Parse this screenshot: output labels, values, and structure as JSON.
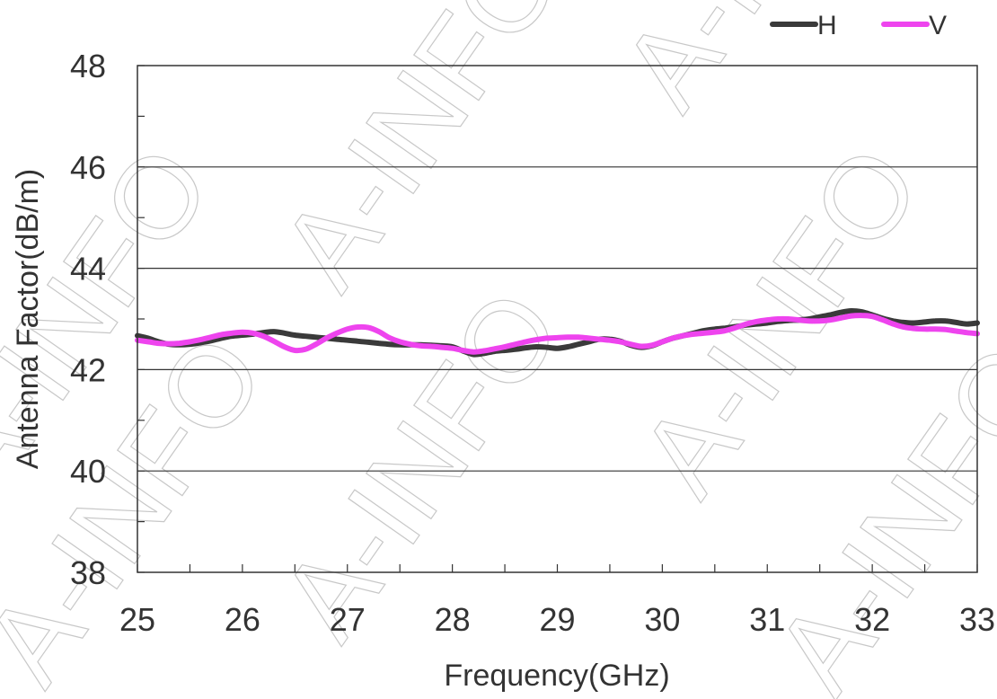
{
  "watermark": "A-INFO",
  "chart_data": {
    "type": "line",
    "xlabel": "Frequency(GHz)",
    "ylabel": "Antenna Factor(dB/m)",
    "xlim": [
      25,
      33
    ],
    "ylim": [
      38,
      48
    ],
    "x_ticks": [
      "25",
      "26",
      "27",
      "28",
      "29",
      "30",
      "31",
      "32",
      "33"
    ],
    "y_ticks": [
      "38",
      "40",
      "42",
      "44",
      "46",
      "48"
    ],
    "grid": "horizontal",
    "legend_position": "top-right",
    "series": [
      {
        "name": "H",
        "color": "#3a3a3a",
        "x": [
          25.0,
          25.1,
          25.2,
          25.3,
          25.4,
          25.5,
          25.6,
          25.7,
          25.8,
          25.9,
          26.0,
          26.1,
          26.2,
          26.3,
          26.4,
          26.5,
          26.6,
          26.7,
          26.8,
          26.9,
          27.0,
          27.1,
          27.2,
          27.3,
          27.4,
          27.5,
          27.6,
          27.7,
          27.8,
          27.9,
          28.0,
          28.1,
          28.2,
          28.3,
          28.4,
          28.5,
          28.6,
          28.7,
          28.8,
          28.9,
          29.0,
          29.1,
          29.2,
          29.3,
          29.4,
          29.5,
          29.6,
          29.7,
          29.8,
          29.9,
          30.0,
          30.1,
          30.2,
          30.3,
          30.4,
          30.5,
          30.6,
          30.7,
          30.8,
          30.9,
          31.0,
          31.1,
          31.2,
          31.3,
          31.4,
          31.5,
          31.6,
          31.7,
          31.8,
          31.9,
          32.0,
          32.1,
          32.2,
          32.3,
          32.4,
          32.5,
          32.6,
          32.7,
          32.8,
          32.9,
          33.0
        ],
        "values": [
          42.67,
          42.62,
          42.55,
          42.5,
          42.49,
          42.5,
          42.53,
          42.57,
          42.62,
          42.66,
          42.68,
          42.7,
          42.73,
          42.75,
          42.72,
          42.68,
          42.66,
          42.64,
          42.62,
          42.6,
          42.58,
          42.56,
          42.54,
          42.52,
          42.5,
          42.49,
          42.49,
          42.49,
          42.48,
          42.47,
          42.45,
          42.37,
          42.3,
          42.32,
          42.36,
          42.38,
          42.4,
          42.43,
          42.45,
          42.44,
          42.42,
          42.45,
          42.5,
          42.55,
          42.6,
          42.6,
          42.56,
          42.48,
          42.44,
          42.47,
          42.55,
          42.62,
          42.67,
          42.72,
          42.77,
          42.8,
          42.82,
          42.85,
          42.88,
          42.9,
          42.92,
          42.95,
          42.97,
          42.98,
          43.0,
          43.04,
          43.08,
          43.13,
          43.16,
          43.14,
          43.08,
          43.01,
          42.96,
          42.93,
          42.92,
          42.94,
          42.96,
          42.96,
          42.93,
          42.9,
          42.92
        ]
      },
      {
        "name": "V",
        "color": "#ee44ee",
        "x": [
          25.0,
          25.1,
          25.2,
          25.3,
          25.4,
          25.5,
          25.6,
          25.7,
          25.8,
          25.9,
          26.0,
          26.1,
          26.2,
          26.3,
          26.4,
          26.5,
          26.6,
          26.7,
          26.8,
          26.9,
          27.0,
          27.1,
          27.2,
          27.3,
          27.4,
          27.5,
          27.6,
          27.7,
          27.8,
          27.9,
          28.0,
          28.1,
          28.2,
          28.3,
          28.4,
          28.5,
          28.6,
          28.7,
          28.8,
          28.9,
          29.0,
          29.1,
          29.2,
          29.3,
          29.4,
          29.5,
          29.6,
          29.7,
          29.8,
          29.9,
          30.0,
          30.1,
          30.2,
          30.3,
          30.4,
          30.5,
          30.6,
          30.7,
          30.8,
          30.9,
          31.0,
          31.1,
          31.2,
          31.3,
          31.4,
          31.5,
          31.6,
          31.7,
          31.8,
          31.9,
          32.0,
          32.1,
          32.2,
          32.3,
          32.4,
          32.5,
          32.6,
          32.7,
          32.8,
          32.9,
          33.0
        ],
        "values": [
          42.58,
          42.55,
          42.52,
          42.51,
          42.52,
          42.55,
          42.59,
          42.64,
          42.69,
          42.72,
          42.74,
          42.72,
          42.66,
          42.56,
          42.45,
          42.38,
          42.4,
          42.5,
          42.62,
          42.72,
          42.8,
          42.84,
          42.83,
          42.75,
          42.63,
          42.55,
          42.5,
          42.47,
          42.46,
          42.44,
          42.42,
          42.38,
          42.35,
          42.37,
          42.41,
          42.45,
          42.5,
          42.55,
          42.59,
          42.62,
          42.63,
          42.64,
          42.64,
          42.62,
          42.6,
          42.58,
          42.55,
          42.5,
          42.46,
          42.48,
          42.55,
          42.62,
          42.67,
          42.7,
          42.72,
          42.74,
          42.77,
          42.83,
          42.9,
          42.95,
          42.98,
          43.0,
          43.0,
          42.98,
          42.96,
          42.96,
          42.98,
          43.02,
          43.06,
          43.07,
          43.05,
          42.98,
          42.9,
          42.84,
          42.81,
          42.8,
          42.8,
          42.79,
          42.76,
          42.73,
          42.71
        ]
      }
    ]
  }
}
